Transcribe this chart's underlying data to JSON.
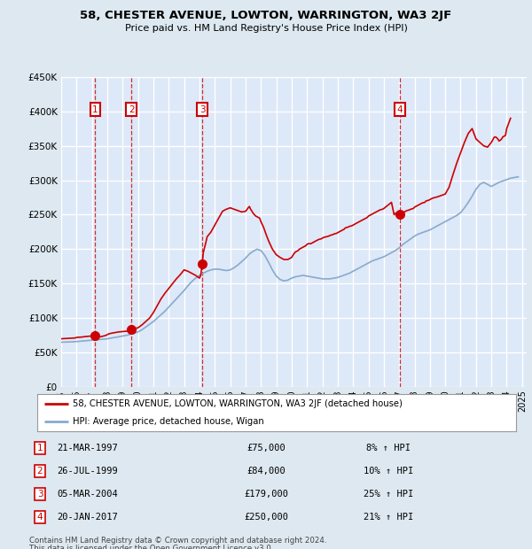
{
  "title": "58, CHESTER AVENUE, LOWTON, WARRINGTON, WA3 2JF",
  "subtitle": "Price paid vs. HM Land Registry's House Price Index (HPI)",
  "legend_property": "58, CHESTER AVENUE, LOWTON, WARRINGTON, WA3 2JF (detached house)",
  "legend_hpi": "HPI: Average price, detached house, Wigan",
  "footer1": "Contains HM Land Registry data © Crown copyright and database right 2024.",
  "footer2": "This data is licensed under the Open Government Licence v3.0.",
  "ylim": [
    0,
    450000
  ],
  "yticks": [
    0,
    50000,
    100000,
    150000,
    200000,
    250000,
    300000,
    350000,
    400000,
    450000
  ],
  "xlim_start": 1995.0,
  "xlim_end": 2025.3,
  "sale_dates": [
    1997.22,
    1999.57,
    2004.18,
    2017.05
  ],
  "sale_prices": [
    75000,
    84000,
    179000,
    250000
  ],
  "sale_labels": [
    "1",
    "2",
    "3",
    "4"
  ],
  "sale_date_strs": [
    "21-MAR-1997",
    "26-JUL-1999",
    "05-MAR-2004",
    "20-JAN-2017"
  ],
  "sale_price_strs": [
    "£75,000",
    "£84,000",
    "£179,000",
    "£250,000"
  ],
  "sale_hpi_strs": [
    "8% ↑ HPI",
    "10% ↑ HPI",
    "25% ↑ HPI",
    "21% ↑ HPI"
  ],
  "property_color": "#cc0000",
  "hpi_color": "#88aacc",
  "background_color": "#dde8f0",
  "plot_bg_color": "#dde8f8",
  "grid_color": "#ffffff",
  "dashed_line_color": "#cc0000",
  "hpi_years": [
    1995.0,
    1995.25,
    1995.5,
    1995.75,
    1996.0,
    1996.25,
    1996.5,
    1996.75,
    1997.0,
    1997.25,
    1997.5,
    1997.75,
    1998.0,
    1998.25,
    1998.5,
    1998.75,
    1999.0,
    1999.25,
    1999.5,
    1999.75,
    2000.0,
    2000.25,
    2000.5,
    2000.75,
    2001.0,
    2001.25,
    2001.5,
    2001.75,
    2002.0,
    2002.25,
    2002.5,
    2002.75,
    2003.0,
    2003.25,
    2003.5,
    2003.75,
    2004.0,
    2004.25,
    2004.5,
    2004.75,
    2005.0,
    2005.25,
    2005.5,
    2005.75,
    2006.0,
    2006.25,
    2006.5,
    2006.75,
    2007.0,
    2007.25,
    2007.5,
    2007.75,
    2008.0,
    2008.25,
    2008.5,
    2008.75,
    2009.0,
    2009.25,
    2009.5,
    2009.75,
    2010.0,
    2010.25,
    2010.5,
    2010.75,
    2011.0,
    2011.25,
    2011.5,
    2011.75,
    2012.0,
    2012.25,
    2012.5,
    2012.75,
    2013.0,
    2013.25,
    2013.5,
    2013.75,
    2014.0,
    2014.25,
    2014.5,
    2014.75,
    2015.0,
    2015.25,
    2015.5,
    2015.75,
    2016.0,
    2016.25,
    2016.5,
    2016.75,
    2017.0,
    2017.25,
    2017.5,
    2017.75,
    2018.0,
    2018.25,
    2018.5,
    2018.75,
    2019.0,
    2019.25,
    2019.5,
    2019.75,
    2020.0,
    2020.25,
    2020.5,
    2020.75,
    2021.0,
    2021.25,
    2021.5,
    2021.75,
    2022.0,
    2022.25,
    2022.5,
    2022.75,
    2023.0,
    2023.25,
    2023.5,
    2023.75,
    2024.0,
    2024.25,
    2024.5,
    2024.75
  ],
  "hpi_values": [
    65000,
    65200,
    65400,
    65700,
    66000,
    66500,
    67000,
    67500,
    68000,
    68500,
    69000,
    69500,
    70000,
    71000,
    72000,
    73000,
    74000,
    75000,
    76500,
    78000,
    80000,
    83000,
    87000,
    91000,
    95000,
    100000,
    105000,
    110000,
    116000,
    122000,
    128000,
    134000,
    140000,
    147000,
    153000,
    158000,
    162000,
    165000,
    168000,
    170000,
    171000,
    171000,
    170000,
    169000,
    170000,
    173000,
    177000,
    182000,
    187000,
    193000,
    197000,
    200000,
    198000,
    191000,
    181000,
    170000,
    161000,
    156000,
    154000,
    155000,
    158000,
    160000,
    161000,
    162000,
    161000,
    160000,
    159000,
    158000,
    157000,
    157000,
    157000,
    158000,
    159000,
    161000,
    163000,
    165000,
    168000,
    171000,
    174000,
    177000,
    180000,
    183000,
    185000,
    187000,
    189000,
    192000,
    195000,
    198000,
    202000,
    207000,
    211000,
    215000,
    219000,
    222000,
    224000,
    226000,
    228000,
    231000,
    234000,
    237000,
    240000,
    243000,
    246000,
    249000,
    253000,
    260000,
    268000,
    277000,
    287000,
    294000,
    297000,
    294000,
    291000,
    294000,
    297000,
    299000,
    301000,
    303000,
    304000,
    305000
  ],
  "prop_years": [
    1995.0,
    1995.08,
    1995.17,
    1995.25,
    1995.33,
    1995.42,
    1995.5,
    1995.58,
    1995.67,
    1995.75,
    1995.83,
    1995.92,
    1996.0,
    1996.08,
    1996.17,
    1996.25,
    1996.33,
    1996.42,
    1996.5,
    1996.58,
    1996.67,
    1996.75,
    1996.83,
    1996.92,
    1997.0,
    1997.08,
    1997.17,
    1997.22,
    1997.33,
    1997.42,
    1997.5,
    1997.58,
    1997.67,
    1997.75,
    1997.83,
    1997.92,
    1998.0,
    1998.08,
    1998.25,
    1998.5,
    1998.75,
    1999.0,
    1999.25,
    1999.5,
    1999.57,
    1999.75,
    2000.0,
    2000.25,
    2000.5,
    2000.75,
    2001.0,
    2001.25,
    2001.5,
    2001.75,
    2002.0,
    2002.25,
    2002.5,
    2002.75,
    2003.0,
    2003.25,
    2003.5,
    2003.75,
    2004.0,
    2004.08,
    2004.18,
    2004.25,
    2004.42,
    2004.5,
    2004.75,
    2005.0,
    2005.25,
    2005.5,
    2005.75,
    2006.0,
    2006.25,
    2006.5,
    2006.75,
    2007.0,
    2007.08,
    2007.17,
    2007.25,
    2007.33,
    2007.42,
    2007.5,
    2007.58,
    2007.67,
    2007.75,
    2007.92,
    2008.0,
    2008.17,
    2008.33,
    2008.5,
    2008.75,
    2009.0,
    2009.25,
    2009.5,
    2009.75,
    2010.0,
    2010.08,
    2010.17,
    2010.25,
    2010.33,
    2010.42,
    2010.5,
    2010.58,
    2010.67,
    2010.75,
    2010.83,
    2010.92,
    2011.0,
    2011.08,
    2011.17,
    2011.25,
    2011.33,
    2011.42,
    2011.5,
    2011.58,
    2011.67,
    2011.75,
    2011.92,
    2012.0,
    2012.08,
    2012.25,
    2012.42,
    2012.5,
    2012.67,
    2012.75,
    2012.92,
    2013.0,
    2013.08,
    2013.25,
    2013.42,
    2013.5,
    2013.67,
    2013.75,
    2013.92,
    2014.0,
    2014.17,
    2014.33,
    2014.5,
    2014.67,
    2014.75,
    2014.92,
    2015.0,
    2015.17,
    2015.33,
    2015.5,
    2015.67,
    2015.75,
    2015.92,
    2016.0,
    2016.17,
    2016.33,
    2016.5,
    2016.67,
    2016.75,
    2016.92,
    2017.0,
    2017.05,
    2017.17,
    2017.33,
    2017.5,
    2017.67,
    2017.75,
    2017.92,
    2018.0,
    2018.17,
    2018.33,
    2018.5,
    2018.67,
    2018.75,
    2018.92,
    2019.0,
    2019.17,
    2019.5,
    2019.75,
    2020.0,
    2020.25,
    2020.5,
    2020.75,
    2021.0,
    2021.25,
    2021.5,
    2021.75,
    2022.0,
    2022.25,
    2022.5,
    2022.75,
    2023.0,
    2023.08,
    2023.17,
    2023.25,
    2023.33,
    2023.42,
    2023.5,
    2023.58,
    2023.67,
    2023.75,
    2023.83,
    2023.92,
    2024.0,
    2024.25
  ],
  "prop_values": [
    70000,
    70200,
    70300,
    70400,
    70500,
    70600,
    70700,
    70800,
    70800,
    70900,
    71000,
    71200,
    72000,
    72100,
    72200,
    72300,
    72500,
    72700,
    73000,
    73200,
    73400,
    73600,
    73800,
    74000,
    74500,
    75000,
    75000,
    75000,
    74000,
    73500,
    73000,
    73000,
    73500,
    74000,
    74500,
    75000,
    76000,
    77000,
    78000,
    79000,
    80000,
    80500,
    81000,
    82000,
    84000,
    84500,
    86000,
    90000,
    95000,
    100000,
    108000,
    118000,
    128000,
    136000,
    143000,
    150000,
    157000,
    163000,
    170000,
    168000,
    165000,
    162000,
    158000,
    162000,
    179000,
    195000,
    210000,
    218000,
    225000,
    235000,
    245000,
    255000,
    258000,
    260000,
    258000,
    256000,
    254000,
    255000,
    257000,
    260000,
    262000,
    258000,
    255000,
    252000,
    250000,
    248000,
    247000,
    245000,
    240000,
    232000,
    222000,
    212000,
    200000,
    192000,
    188000,
    185000,
    185000,
    188000,
    191000,
    194000,
    196000,
    197000,
    198000,
    200000,
    201000,
    202000,
    203000,
    204000,
    205000,
    207000,
    208000,
    208000,
    208000,
    209000,
    210000,
    211000,
    212000,
    213000,
    214000,
    215000,
    216000,
    217000,
    218000,
    219000,
    220000,
    221000,
    222000,
    223000,
    224000,
    225000,
    227000,
    229000,
    231000,
    232000,
    233000,
    234000,
    235000,
    237000,
    239000,
    241000,
    243000,
    244000,
    246000,
    248000,
    250000,
    252000,
    254000,
    256000,
    257000,
    258000,
    259000,
    262000,
    265000,
    268000,
    250000,
    252000,
    253000,
    250000,
    250000,
    252000,
    254000,
    256000,
    257000,
    258000,
    259000,
    261000,
    263000,
    265000,
    267000,
    268000,
    270000,
    271000,
    272000,
    274000,
    276000,
    278000,
    280000,
    290000,
    308000,
    325000,
    340000,
    355000,
    368000,
    375000,
    360000,
    355000,
    350000,
    348000,
    355000,
    358000,
    362000,
    363000,
    362000,
    360000,
    357000,
    358000,
    360000,
    363000,
    364000,
    365000,
    375000,
    390000
  ]
}
